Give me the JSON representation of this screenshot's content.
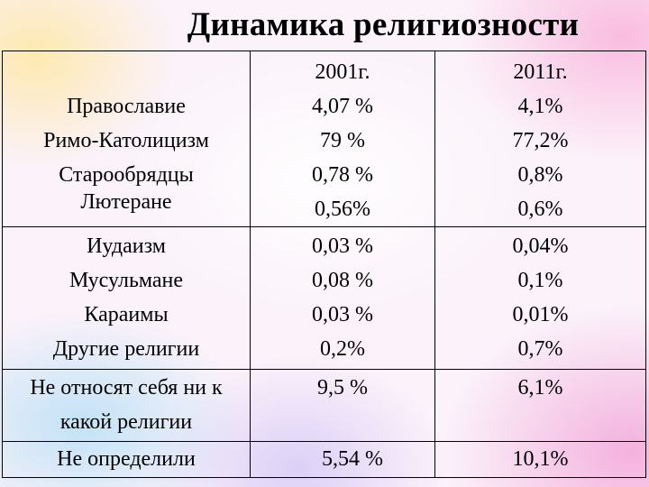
{
  "title": "Динамика религиозности",
  "columns": [
    "",
    "2001г.",
    "2011г."
  ],
  "groups": [
    {
      "labels": [
        "",
        "Православие",
        "Римо-Католицизм",
        "Старообрядцы",
        "Лютеране"
      ],
      "y2001": [
        "2001г.",
        "4,07 %",
        "79 %",
        "0,78 %",
        "0,56%"
      ],
      "y2011": [
        "2011г.",
        "4,1%",
        "77,2%",
        "0,8%",
        "0,6%"
      ]
    },
    {
      "labels": [
        "Иудаизм",
        "Мусульмане",
        "Караимы",
        "Другие религии"
      ],
      "y2001": [
        "0,03 %",
        "0,08 %",
        "0,03 %",
        "0,2%"
      ],
      "y2011": [
        "0,04%",
        "0,1%",
        "0,01%",
        "0,7%"
      ]
    },
    {
      "labels": [
        "Не относят себя ни к",
        "какой религии"
      ],
      "y2001": [
        "9,5 %"
      ],
      "y2011": [
        "6,1%"
      ]
    },
    {
      "labels": [
        "Не определили"
      ],
      "y2001": [
        "5,54 %"
      ],
      "y2011": [
        "10,1%"
      ]
    }
  ]
}
